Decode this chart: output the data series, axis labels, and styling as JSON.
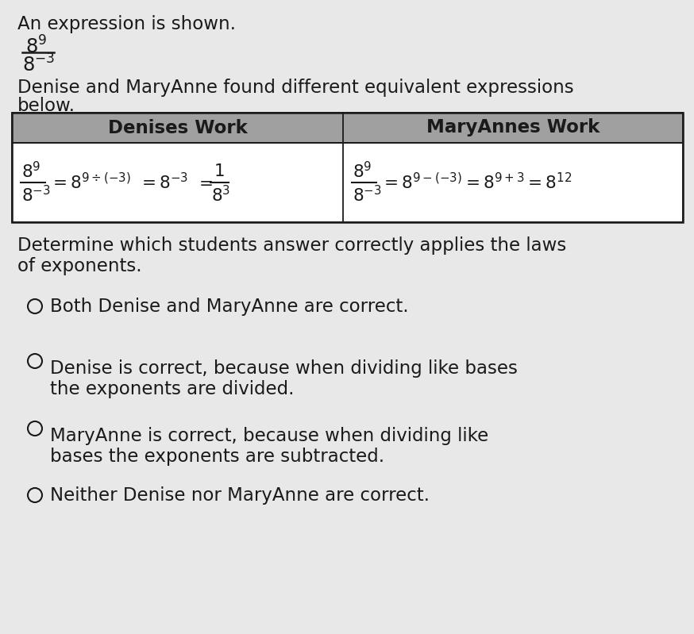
{
  "bg_color": "#e8e8e8",
  "white": "#ffffff",
  "header_bg": "#a0a0a0",
  "text_color": "#1a1a1a",
  "intro_line1": "An expression is shown.",
  "intro_line2": "Denise and MaryAnne found different equivalent expressions",
  "intro_line3": "below.",
  "col1_header": "Denises Work",
  "col2_header": "MaryAnnes Work",
  "question_line1": "Determine which students answer correctly applies the laws",
  "question_line2": "of exponents.",
  "option1": "Both Denise and MaryAnne are correct.",
  "option2_line1": "Denise is correct, because when dividing like bases",
  "option2_line2": "the exponents are divided.",
  "option3_line1": "MaryAnne is correct, because when dividing like",
  "option3_line2": "bases the exponents are subtracted.",
  "option4": "Neither Denise nor MaryAnne are correct.",
  "font_size_body": 16.5,
  "font_size_header": 16.5,
  "font_size_math": 15.5
}
